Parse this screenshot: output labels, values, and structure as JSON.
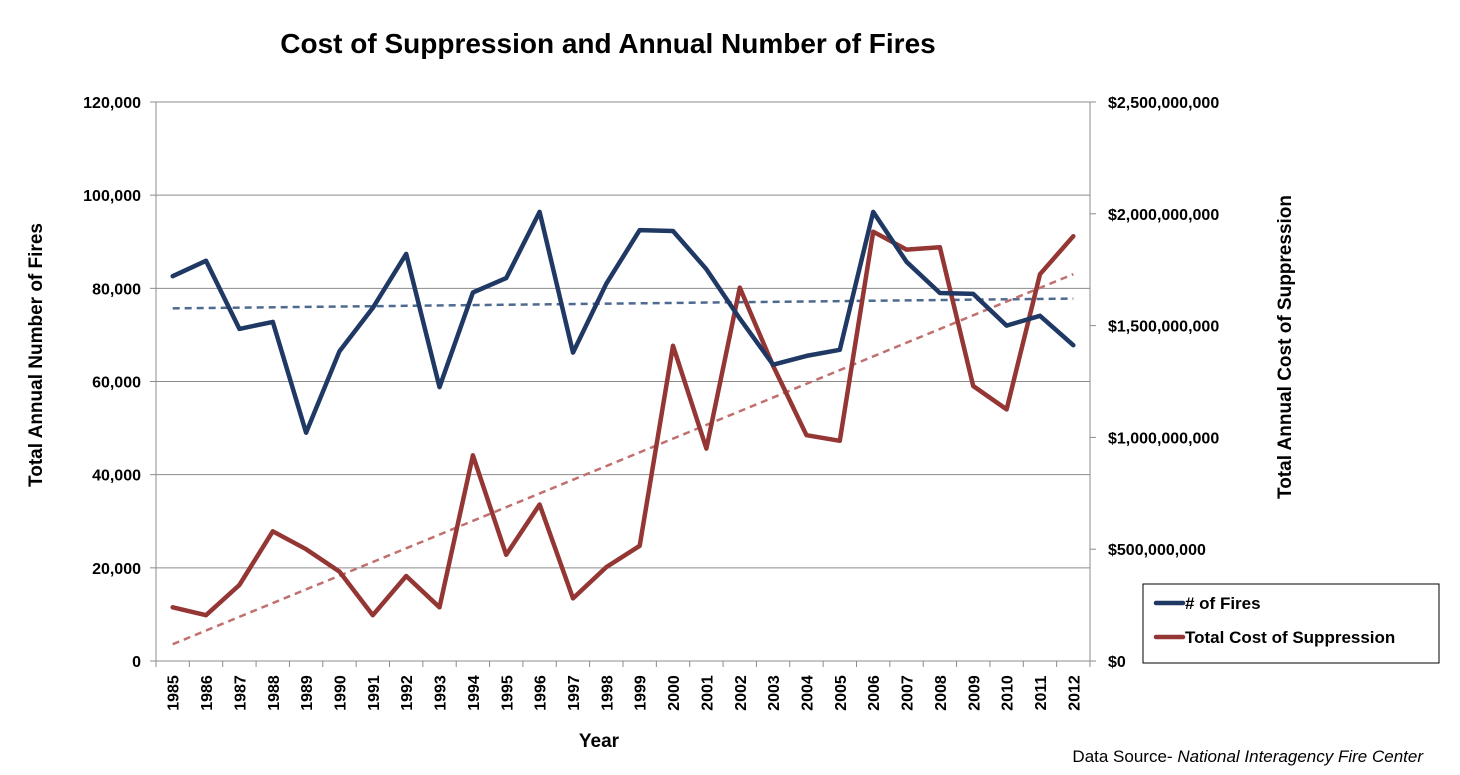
{
  "chart_data": {
    "type": "line",
    "title": "Cost of Suppression and Annual Number of Fires",
    "xlabel": "Year",
    "ylabel_left": "Total Annual Number of Fires",
    "ylabel_right": "Total Annual Cost of Suppression",
    "x": [
      "1985",
      "1986",
      "1987",
      "1988",
      "1989",
      "1990",
      "1991",
      "1992",
      "1993",
      "1994",
      "1995",
      "1996",
      "1997",
      "1998",
      "1999",
      "2000",
      "2001",
      "2002",
      "2003",
      "2004",
      "2005",
      "2006",
      "2007",
      "2008",
      "2009",
      "2010",
      "2011",
      "2012"
    ],
    "y_left_ticks": [
      "0",
      "20,000",
      "40,000",
      "60,000",
      "80,000",
      "100,000",
      "120,000"
    ],
    "y_right_ticks": [
      "$0",
      "$500,000,000",
      "$1,000,000,000",
      "$1,500,000,000",
      "$2,000,000,000",
      "$2,500,000,000"
    ],
    "ylim_left": [
      0,
      120000
    ],
    "ylim_right": [
      0,
      2500000000
    ],
    "grid": true,
    "legend_position": "bottom-right",
    "series": [
      {
        "name": "# of Fires",
        "axis": "left",
        "color": "#1f3864",
        "values": [
          82600,
          85900,
          71300,
          72800,
          49000,
          66500,
          75800,
          87400,
          58800,
          79100,
          82200,
          96400,
          66200,
          81000,
          92500,
          92300,
          84100,
          73500,
          63600,
          65500,
          66800,
          96400,
          85700,
          79000,
          78800,
          72000,
          74100,
          67800
        ]
      },
      {
        "name": "Total Cost of Suppression",
        "axis": "right",
        "color": "#943634",
        "values": [
          240000000,
          205000000,
          340000000,
          580000000,
          500000000,
          400000000,
          205000000,
          380000000,
          240000000,
          920000000,
          475000000,
          700000000,
          280000000,
          420000000,
          515000000,
          1410000000,
          950000000,
          1670000000,
          1320000000,
          1010000000,
          985000000,
          1920000000,
          1840000000,
          1850000000,
          1230000000,
          1125000000,
          1730000000,
          1900000000
        ]
      }
    ],
    "trendlines": [
      {
        "series": "# of Fires",
        "axis": "left",
        "color": "#4f6a8f",
        "start": 75700,
        "end": 77800
      },
      {
        "series": "Total Cost of Suppression",
        "axis": "right",
        "color": "#c0706e",
        "start": 75000000,
        "end": 1730000000
      }
    ],
    "source_prefix": "Data Source- ",
    "source_name": "National Interagency Fire Center"
  }
}
